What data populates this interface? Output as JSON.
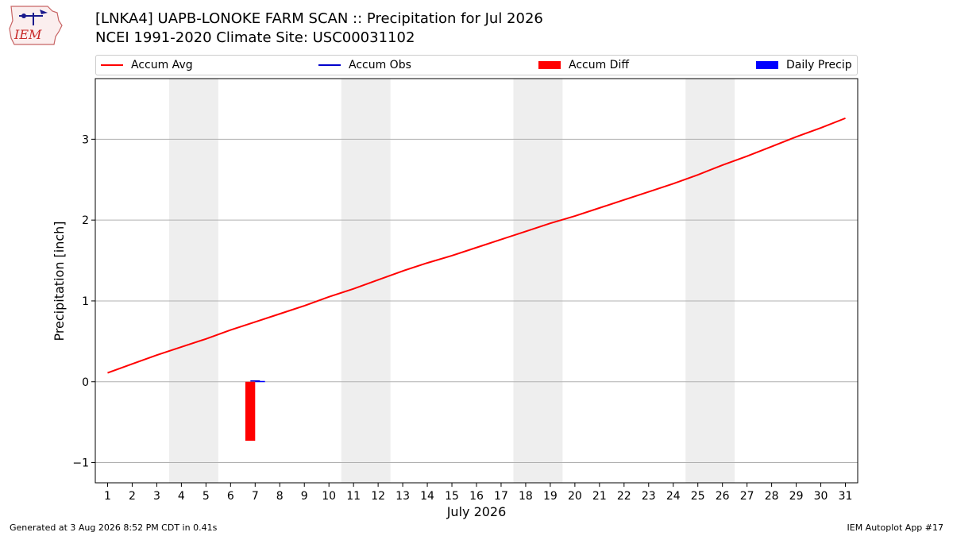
{
  "logo": {
    "text": "IEM"
  },
  "title": {
    "line1": "[LNKA4] UAPB-LONOKE FARM SCAN :: Precipitation for Jul 2026",
    "line2": "NCEI 1991-2020 Climate Site: USC00031102"
  },
  "footer": {
    "generated": "Generated at 3 Aug 2026 8:52 PM CDT in 0.41s",
    "app": "IEM Autoplot App #17"
  },
  "chart_data": {
    "type": "line",
    "xlabel": "July 2026",
    "ylabel": "Precipitation [inch]",
    "xlim": [
      0.5,
      31.5
    ],
    "ylim": [
      -1.25,
      3.75
    ],
    "yticks": [
      -1,
      0,
      1,
      2,
      3
    ],
    "ytick_labels": [
      "−1",
      "0",
      "1",
      "2",
      "3"
    ],
    "xticks": [
      1,
      2,
      3,
      4,
      5,
      6,
      7,
      8,
      9,
      10,
      11,
      12,
      13,
      14,
      15,
      16,
      17,
      18,
      19,
      20,
      21,
      22,
      23,
      24,
      25,
      26,
      27,
      28,
      29,
      30,
      31
    ],
    "grid": "horizontal",
    "legend_position": "top",
    "weekend_shading": [
      [
        4,
        5
      ],
      [
        11,
        12
      ],
      [
        18,
        19
      ],
      [
        25,
        26
      ]
    ],
    "legend": [
      {
        "label": "Accum Avg",
        "kind": "line",
        "color": "#ff0000"
      },
      {
        "label": "Accum Obs",
        "kind": "line",
        "color": "#0000cc"
      },
      {
        "label": "Accum Diff",
        "kind": "bar",
        "color": "#ff0000"
      },
      {
        "label": "Daily Precip",
        "kind": "bar",
        "color": "#0000ff"
      }
    ],
    "series": [
      {
        "name": "Accum Avg",
        "type": "line",
        "color": "#ff0000",
        "x": [
          1,
          2,
          3,
          4,
          5,
          6,
          7,
          8,
          9,
          10,
          11,
          12,
          13,
          14,
          15,
          16,
          17,
          18,
          19,
          20,
          21,
          22,
          23,
          24,
          25,
          26,
          27,
          28,
          29,
          30,
          31
        ],
        "values": [
          0.11,
          0.22,
          0.33,
          0.43,
          0.53,
          0.64,
          0.74,
          0.84,
          0.94,
          1.05,
          1.15,
          1.26,
          1.37,
          1.47,
          1.56,
          1.66,
          1.76,
          1.86,
          1.96,
          2.05,
          2.15,
          2.25,
          2.35,
          2.45,
          2.56,
          2.68,
          2.79,
          2.91,
          3.03,
          3.14,
          3.26
        ]
      },
      {
        "name": "Accum Obs",
        "type": "line",
        "color": "#0000cc",
        "x": [
          7
        ],
        "values": [
          0.01
        ]
      },
      {
        "name": "Accum Diff",
        "type": "bar",
        "color": "#ff0000",
        "x": [
          7
        ],
        "values": [
          -0.73
        ]
      },
      {
        "name": "Daily Precip",
        "type": "bar",
        "color": "#0000ff",
        "x": [
          7
        ],
        "values": [
          0.01
        ]
      }
    ]
  }
}
